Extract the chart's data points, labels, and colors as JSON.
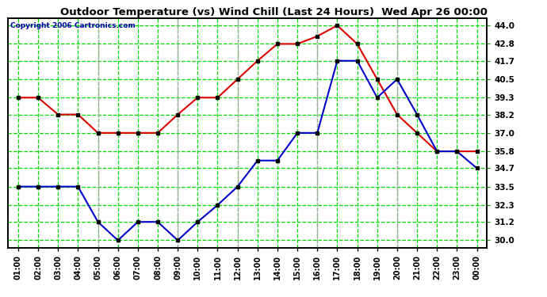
{
  "title": "Outdoor Temperature (vs) Wind Chill (Last 24 Hours)  Wed Apr 26 00:00",
  "copyright": "Copyright 2006 Cartronics.com",
  "x_labels": [
    "01:00",
    "02:00",
    "03:00",
    "04:00",
    "05:00",
    "06:00",
    "07:00",
    "08:00",
    "09:00",
    "10:00",
    "11:00",
    "12:00",
    "13:00",
    "14:00",
    "15:00",
    "16:00",
    "17:00",
    "18:00",
    "19:00",
    "20:00",
    "21:00",
    "22:00",
    "23:00",
    "00:00"
  ],
  "temp_red": [
    39.3,
    39.3,
    38.2,
    38.2,
    37.0,
    37.0,
    37.0,
    37.0,
    38.2,
    39.3,
    39.3,
    40.5,
    41.7,
    42.8,
    42.8,
    43.3,
    44.0,
    42.8,
    40.5,
    38.2,
    37.0,
    35.8,
    35.8,
    35.8
  ],
  "wind_blue": [
    33.5,
    33.5,
    33.5,
    33.5,
    31.2,
    30.0,
    31.2,
    31.2,
    30.0,
    31.2,
    32.3,
    33.5,
    35.2,
    35.2,
    37.0,
    37.0,
    41.7,
    41.7,
    39.3,
    40.5,
    38.2,
    35.8,
    35.8,
    34.7
  ],
  "y_ticks": [
    30.0,
    31.2,
    32.3,
    33.5,
    34.7,
    35.8,
    37.0,
    38.2,
    39.3,
    40.5,
    41.7,
    42.8,
    44.0
  ],
  "ylim": [
    29.5,
    44.5
  ],
  "plot_bg": "#ffffff",
  "outer_bg": "#ffffff",
  "grid_color": "#00dd00",
  "vline_color": "#aaaaaa",
  "red_color": "#dd0000",
  "blue_color": "#0000cc",
  "title_color": "#000000",
  "copyright_color": "#0000aa",
  "tick_label_color": "#000000",
  "border_color": "#000000",
  "vline_positions": [
    4,
    8,
    11,
    15,
    19
  ]
}
